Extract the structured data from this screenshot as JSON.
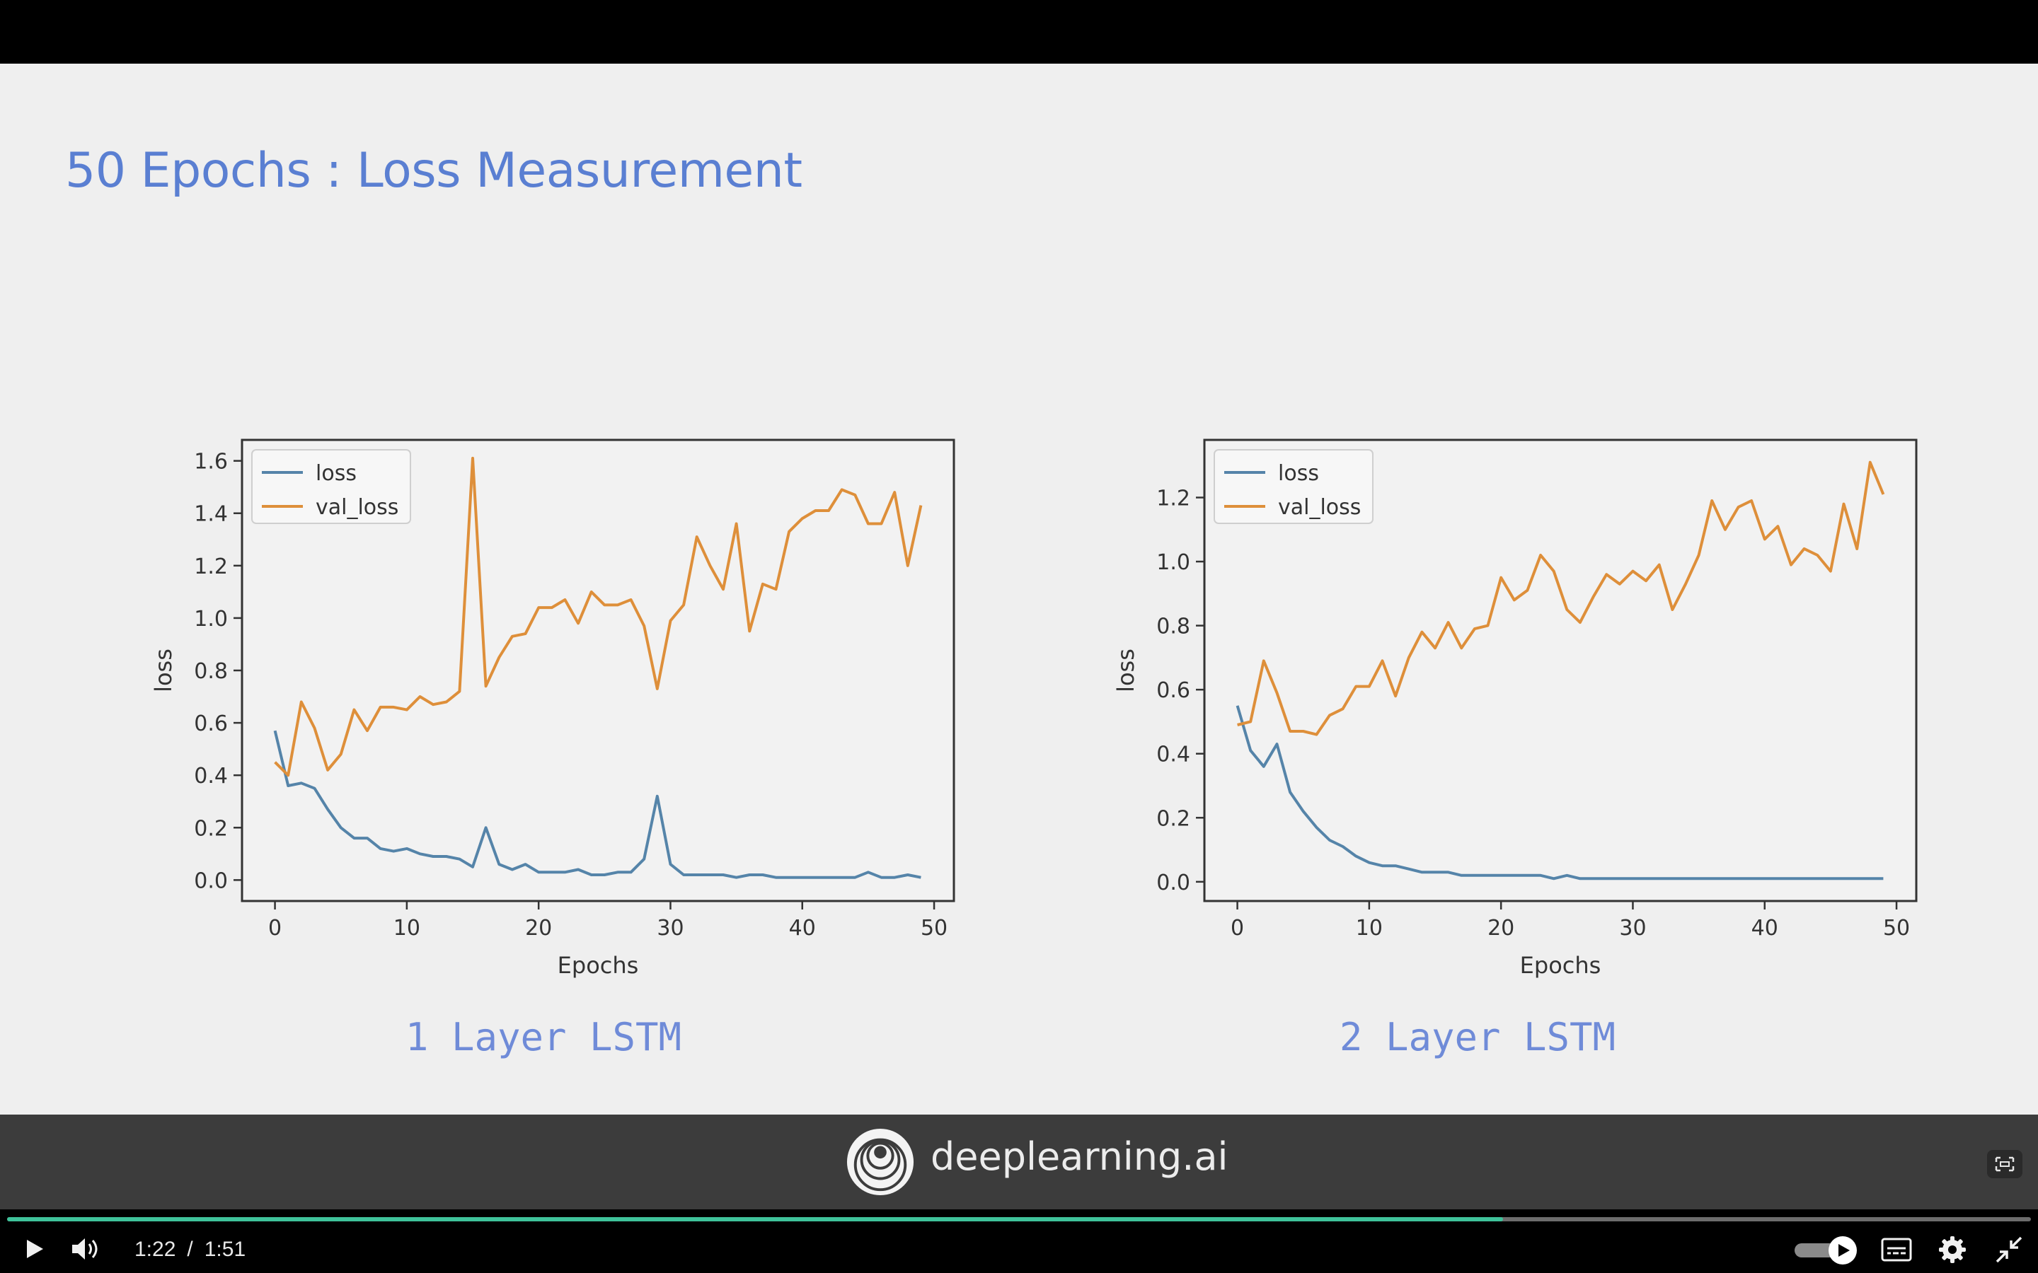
{
  "slide": {
    "title": "50 Epochs : Loss Measurement",
    "brand": "deeplearning.ai"
  },
  "colors": {
    "loss": "#5584a9",
    "val_loss": "#de8f3a",
    "title": "#5a7fd2",
    "progress": "#3fc29a"
  },
  "chart_data": [
    {
      "type": "line",
      "caption": "1 Layer LSTM",
      "xlabel": "Epochs",
      "ylabel": "loss",
      "xlim": [
        -2.5,
        51.5
      ],
      "ylim": [
        -0.08,
        1.68
      ],
      "xticks": [
        0,
        10,
        20,
        30,
        40,
        50
      ],
      "yticks": [
        0.0,
        0.2,
        0.4,
        0.6,
        0.8,
        1.0,
        1.2,
        1.4,
        1.6
      ],
      "ytick_labels": [
        "0.0",
        "0.2",
        "0.4",
        "0.6",
        "0.8",
        "1.0",
        "1.2",
        "1.4",
        "1.6"
      ],
      "legend": "top-left",
      "grid": false,
      "series": [
        {
          "name": "loss",
          "color": "#5584a9",
          "x": [
            0,
            1,
            2,
            3,
            4,
            5,
            6,
            7,
            8,
            9,
            10,
            11,
            12,
            13,
            14,
            15,
            16,
            17,
            18,
            19,
            20,
            21,
            22,
            23,
            24,
            25,
            26,
            27,
            28,
            29,
            30,
            31,
            32,
            33,
            34,
            35,
            36,
            37,
            38,
            39,
            40,
            41,
            42,
            43,
            44,
            45,
            46,
            47,
            48,
            49
          ],
          "values": [
            0.57,
            0.36,
            0.37,
            0.35,
            0.27,
            0.2,
            0.16,
            0.16,
            0.12,
            0.11,
            0.12,
            0.1,
            0.09,
            0.09,
            0.08,
            0.05,
            0.2,
            0.06,
            0.04,
            0.06,
            0.03,
            0.03,
            0.03,
            0.04,
            0.02,
            0.02,
            0.03,
            0.03,
            0.08,
            0.32,
            0.06,
            0.02,
            0.02,
            0.02,
            0.02,
            0.01,
            0.02,
            0.02,
            0.01,
            0.01,
            0.01,
            0.01,
            0.01,
            0.01,
            0.01,
            0.03,
            0.01,
            0.01,
            0.02,
            0.01
          ]
        },
        {
          "name": "val_loss",
          "color": "#de8f3a",
          "x": [
            0,
            1,
            2,
            3,
            4,
            5,
            6,
            7,
            8,
            9,
            10,
            11,
            12,
            13,
            14,
            15,
            16,
            17,
            18,
            19,
            20,
            21,
            22,
            23,
            24,
            25,
            26,
            27,
            28,
            29,
            30,
            31,
            32,
            33,
            34,
            35,
            36,
            37,
            38,
            39,
            40,
            41,
            42,
            43,
            44,
            45,
            46,
            47,
            48,
            49
          ],
          "values": [
            0.45,
            0.4,
            0.68,
            0.58,
            0.42,
            0.48,
            0.65,
            0.57,
            0.66,
            0.66,
            0.65,
            0.7,
            0.67,
            0.68,
            0.72,
            1.61,
            0.74,
            0.85,
            0.93,
            0.94,
            1.04,
            1.04,
            1.07,
            0.98,
            1.1,
            1.05,
            1.05,
            1.07,
            0.97,
            0.73,
            0.99,
            1.05,
            1.31,
            1.2,
            1.11,
            1.36,
            0.95,
            1.13,
            1.11,
            1.33,
            1.38,
            1.41,
            1.41,
            1.49,
            1.47,
            1.36,
            1.36,
            1.48,
            1.2,
            1.43
          ]
        }
      ]
    },
    {
      "type": "line",
      "caption": "2 Layer LSTM",
      "xlabel": "Epochs",
      "ylabel": "loss",
      "xlim": [
        -2.5,
        51.5
      ],
      "ylim": [
        -0.06,
        1.38
      ],
      "xticks": [
        0,
        10,
        20,
        30,
        40,
        50
      ],
      "yticks": [
        0.0,
        0.2,
        0.4,
        0.6,
        0.8,
        1.0,
        1.2
      ],
      "ytick_labels": [
        "0.0",
        "0.2",
        "0.4",
        "0.6",
        "0.8",
        "1.0",
        "1.2"
      ],
      "legend": "top-left",
      "grid": false,
      "series": [
        {
          "name": "loss",
          "color": "#5584a9",
          "x": [
            0,
            1,
            2,
            3,
            4,
            5,
            6,
            7,
            8,
            9,
            10,
            11,
            12,
            13,
            14,
            15,
            16,
            17,
            18,
            19,
            20,
            21,
            22,
            23,
            24,
            25,
            26,
            27,
            28,
            29,
            30,
            31,
            32,
            33,
            34,
            35,
            36,
            37,
            38,
            39,
            40,
            41,
            42,
            43,
            44,
            45,
            46,
            47,
            48,
            49
          ],
          "values": [
            0.55,
            0.41,
            0.36,
            0.43,
            0.28,
            0.22,
            0.17,
            0.13,
            0.11,
            0.08,
            0.06,
            0.05,
            0.05,
            0.04,
            0.03,
            0.03,
            0.03,
            0.02,
            0.02,
            0.02,
            0.02,
            0.02,
            0.02,
            0.02,
            0.01,
            0.02,
            0.01,
            0.01,
            0.01,
            0.01,
            0.01,
            0.01,
            0.01,
            0.01,
            0.01,
            0.01,
            0.01,
            0.01,
            0.01,
            0.01,
            0.01,
            0.01,
            0.01,
            0.01,
            0.01,
            0.01,
            0.01,
            0.01,
            0.01,
            0.01
          ]
        },
        {
          "name": "val_loss",
          "color": "#de8f3a",
          "x": [
            0,
            1,
            2,
            3,
            4,
            5,
            6,
            7,
            8,
            9,
            10,
            11,
            12,
            13,
            14,
            15,
            16,
            17,
            18,
            19,
            20,
            21,
            22,
            23,
            24,
            25,
            26,
            27,
            28,
            29,
            30,
            31,
            32,
            33,
            34,
            35,
            36,
            37,
            38,
            39,
            40,
            41,
            42,
            43,
            44,
            45,
            46,
            47,
            48,
            49
          ],
          "values": [
            0.49,
            0.5,
            0.69,
            0.59,
            0.47,
            0.47,
            0.46,
            0.52,
            0.54,
            0.61,
            0.61,
            0.69,
            0.58,
            0.7,
            0.78,
            0.73,
            0.81,
            0.73,
            0.79,
            0.8,
            0.95,
            0.88,
            0.91,
            1.02,
            0.97,
            0.85,
            0.81,
            0.89,
            0.96,
            0.93,
            0.97,
            0.94,
            0.99,
            0.85,
            0.93,
            1.02,
            1.19,
            1.1,
            1.17,
            1.19,
            1.07,
            1.11,
            0.99,
            1.04,
            1.02,
            0.97,
            1.18,
            1.04,
            1.31,
            1.21
          ]
        }
      ]
    }
  ],
  "player": {
    "current_time": "1:22",
    "separator": "/",
    "duration": "1:51",
    "progress": 0.739,
    "icons": {
      "play": "play-icon",
      "volume": "volume-icon",
      "autoplay": "autoplay-toggle",
      "captions": "captions-icon",
      "settings": "gear-icon",
      "fullscreen": "exit-fullscreen-icon",
      "screenshot": "screenshot-icon"
    }
  }
}
